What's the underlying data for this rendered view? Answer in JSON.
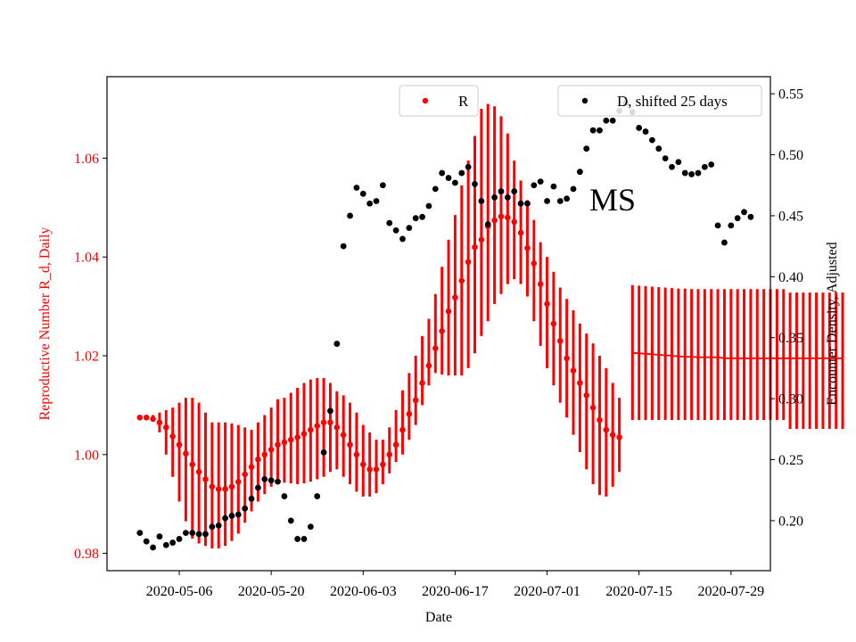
{
  "chart_data": {
    "type": "scatter",
    "xlabel": "Date",
    "ylabel_left": "Reproductive Number R_d, Daily",
    "ylabel_right": "Encounter Density, Adjusted",
    "annotation": "MS",
    "left_axis_color": "#ff0000",
    "right_axis_color": "#000000",
    "x_range": [
      "2020-04-25",
      "2020-08-04"
    ],
    "ylim_left": [
      0.9765,
      1.0765
    ],
    "ylim_right": [
      0.159,
      0.564
    ],
    "x_ticks": [
      "2020-05-06",
      "2020-05-20",
      "2020-06-03",
      "2020-06-17",
      "2020-07-01",
      "2020-07-15",
      "2020-07-29"
    ],
    "y_ticks_left": [
      0.98,
      1.0,
      1.02,
      1.04,
      1.06
    ],
    "y_tick_labels_left": [
      "0.98",
      "1.00",
      "1.02",
      "1.04",
      "1.06"
    ],
    "y_ticks_right": [
      0.2,
      0.25,
      0.3,
      0.35,
      0.4,
      0.45,
      0.5,
      0.55
    ],
    "y_tick_labels_right": [
      "0.20",
      "0.25",
      "0.30",
      "0.35",
      "0.40",
      "0.45",
      "0.50",
      "0.55"
    ],
    "legend": [
      {
        "label": "R",
        "color": "#ff0000",
        "placement": "top-center"
      },
      {
        "label": "D, shifted 25 days",
        "color": "#000000",
        "placement": "top-right"
      }
    ],
    "series": [
      {
        "name": "R",
        "axis": "left",
        "color": "#ff0000",
        "start_date": "2020-04-30",
        "values": [
          1.0075,
          1.0075,
          1.0072,
          1.0065,
          1.0055,
          1.0037,
          1.002,
          1.0002,
          0.998,
          0.9965,
          0.995,
          0.9935,
          0.993,
          0.993,
          0.9935,
          0.9945,
          0.996,
          0.9975,
          0.999,
          1.0,
          1.001,
          1.002,
          1.0025,
          1.003,
          1.0035,
          1.0042,
          1.005,
          1.0058,
          1.0065,
          1.0065,
          1.0055,
          1.004,
          1.002,
          1.0,
          0.998,
          0.997,
          0.997,
          0.998,
          1.0,
          1.002,
          1.005,
          1.0082,
          1.011,
          1.0145,
          1.018,
          1.0215,
          1.025,
          1.029,
          1.0318,
          1.0352,
          1.039,
          1.042,
          1.0435,
          1.0462,
          1.0474,
          1.0482,
          1.048,
          1.0471,
          1.0449,
          1.0418,
          1.0387,
          1.0345,
          1.0305,
          1.0265,
          1.023,
          1.0195,
          1.017,
          1.0145,
          1.012,
          1.0095,
          1.007,
          1.005,
          1.004,
          1.0035
        ],
        "err_low": [
          1.0075,
          1.0072,
          1.007,
          1.0045,
          1.0,
          0.9955,
          0.9905,
          0.9865,
          0.983,
          0.982,
          0.9815,
          0.981,
          0.981,
          0.9815,
          0.9825,
          0.984,
          0.9862,
          0.9885,
          0.9905,
          0.992,
          0.9935,
          0.9942,
          0.9943,
          0.9942,
          0.994,
          0.9942,
          0.9945,
          0.995,
          0.9955,
          0.9965,
          0.997,
          0.9955,
          0.994,
          0.9925,
          0.9915,
          0.9915,
          0.9922,
          0.994,
          0.9962,
          0.9985,
          1.0,
          1.003,
          1.006,
          1.01,
          1.014,
          1.0165,
          1.0162,
          1.016,
          1.016,
          1.016,
          1.0175,
          1.0205,
          1.024,
          1.027,
          1.0305,
          1.0325,
          1.0345,
          1.0355,
          1.0345,
          1.032,
          1.027,
          1.022,
          1.0175,
          1.014,
          1.0105,
          1.0075,
          1.004,
          1.0005,
          0.997,
          0.994,
          0.9918,
          0.9915,
          0.9935,
          0.9965
        ],
        "err_high": [
          1.0075,
          1.0078,
          1.008,
          1.0085,
          1.009,
          1.0095,
          1.0105,
          1.0115,
          1.0115,
          1.0105,
          1.0085,
          1.0065,
          1.0065,
          1.0065,
          1.0063,
          1.006,
          1.0055,
          1.005,
          1.0065,
          1.008,
          1.0095,
          1.0112,
          1.0115,
          1.0125,
          1.0135,
          1.0145,
          1.0152,
          1.0155,
          1.0155,
          1.0145,
          1.0128,
          1.012,
          1.0105,
          1.0085,
          1.006,
          1.0045,
          1.003,
          1.003,
          1.0055,
          1.009,
          1.013,
          1.0165,
          1.02,
          1.024,
          1.0275,
          1.0325,
          1.038,
          1.0435,
          1.0485,
          1.0545,
          1.0595,
          1.0645,
          1.07,
          1.071,
          1.0705,
          1.0685,
          1.065,
          1.0595,
          1.0555,
          1.0515,
          1.0475,
          1.043,
          1.04,
          1.037,
          1.0338,
          1.0315,
          1.0292,
          1.0265,
          1.0245,
          1.0225,
          1.02,
          1.0175,
          1.0145,
          1.0115
        ],
        "flat_segment": {
          "start_date": "2020-07-14",
          "values": [
            1.0206,
            1.0205,
            1.0204,
            1.0203,
            1.0202,
            1.0201,
            1.02,
            1.0199,
            1.0198,
            1.0198,
            1.0197,
            1.0197,
            1.0197,
            1.0197,
            1.0195,
            1.0195,
            1.0195,
            1.0195,
            1.0195,
            1.0195,
            1.0195,
            1.0195,
            1.0195,
            1.0195,
            1.0195,
            1.0195,
            1.0195,
            1.0195,
            1.0195,
            1.0195,
            1.0195,
            1.0195,
            1.0195
          ],
          "err_low": [
            1.007,
            1.007,
            1.007,
            1.007,
            1.007,
            1.007,
            1.007,
            1.007,
            1.007,
            1.007,
            1.007,
            1.007,
            1.007,
            1.007,
            1.007,
            1.007,
            1.007,
            1.007,
            1.007,
            1.007,
            1.007,
            1.007,
            1.007,
            1.007,
            1.0052,
            1.0052,
            1.0052,
            1.0052,
            1.0052,
            1.0052,
            1.0052,
            1.0052,
            1.0052
          ],
          "err_high": [
            1.0343,
            1.0342,
            1.0341,
            1.034,
            1.0339,
            1.0338,
            1.0337,
            1.0336,
            1.0336,
            1.0335,
            1.0335,
            1.0335,
            1.0335,
            1.0335,
            1.0335,
            1.0335,
            1.0335,
            1.0335,
            1.0335,
            1.0335,
            1.0335,
            1.0335,
            1.0335,
            1.0335,
            1.0328,
            1.0328,
            1.0328,
            1.0328,
            1.0328,
            1.0328,
            1.0328,
            1.0328,
            1.0328
          ]
        }
      },
      {
        "name": "D, shifted 25 days",
        "axis": "right",
        "color": "#000000",
        "points": [
          [
            "2020-04-30",
            0.19
          ],
          [
            "2020-05-01",
            0.183
          ],
          [
            "2020-05-02",
            0.178
          ],
          [
            "2020-05-03",
            0.187
          ],
          [
            "2020-05-04",
            0.18
          ],
          [
            "2020-05-05",
            0.182
          ],
          [
            "2020-05-06",
            0.185
          ],
          [
            "2020-05-07",
            0.19
          ],
          [
            "2020-05-08",
            0.19
          ],
          [
            "2020-05-09",
            0.189
          ],
          [
            "2020-05-10",
            0.189
          ],
          [
            "2020-05-11",
            0.195
          ],
          [
            "2020-05-12",
            0.196
          ],
          [
            "2020-05-13",
            0.202
          ],
          [
            "2020-05-14",
            0.204
          ],
          [
            "2020-05-15",
            0.205
          ],
          [
            "2020-05-16",
            0.21
          ],
          [
            "2020-05-17",
            0.218
          ],
          [
            "2020-05-18",
            0.227
          ],
          [
            "2020-05-19",
            0.234
          ],
          [
            "2020-05-20",
            0.233
          ],
          [
            "2020-05-21",
            0.232
          ],
          [
            "2020-05-22",
            0.22
          ],
          [
            "2020-05-23",
            0.2
          ],
          [
            "2020-05-24",
            0.185
          ],
          [
            "2020-05-25",
            0.185
          ],
          [
            "2020-05-26",
            0.195
          ],
          [
            "2020-05-27",
            0.22
          ],
          [
            "2020-05-28",
            0.256
          ],
          [
            "2020-05-29",
            0.29
          ],
          [
            "2020-05-30",
            0.345
          ],
          [
            "2020-05-31",
            0.425
          ],
          [
            "2020-06-01",
            0.45
          ],
          [
            "2020-06-02",
            0.473
          ],
          [
            "2020-06-03",
            0.468
          ],
          [
            "2020-06-04",
            0.46
          ],
          [
            "2020-06-05",
            0.462
          ],
          [
            "2020-06-06",
            0.475
          ],
          [
            "2020-06-07",
            0.444
          ],
          [
            "2020-06-08",
            0.438
          ],
          [
            "2020-06-09",
            0.431
          ],
          [
            "2020-06-10",
            0.44
          ],
          [
            "2020-06-11",
            0.448
          ],
          [
            "2020-06-12",
            0.449
          ],
          [
            "2020-06-13",
            0.458
          ],
          [
            "2020-06-14",
            0.472
          ],
          [
            "2020-06-15",
            0.485
          ],
          [
            "2020-06-16",
            0.481
          ],
          [
            "2020-06-17",
            0.477
          ],
          [
            "2020-06-18",
            0.485
          ],
          [
            "2020-06-19",
            0.49
          ],
          [
            "2020-06-20",
            0.476
          ],
          [
            "2020-06-21",
            0.462
          ],
          [
            "2020-06-22",
            0.443
          ],
          [
            "2020-06-23",
            0.465
          ],
          [
            "2020-06-24",
            0.47
          ],
          [
            "2020-06-25",
            0.465
          ],
          [
            "2020-06-26",
            0.47
          ],
          [
            "2020-06-27",
            0.46
          ],
          [
            "2020-06-28",
            0.46
          ],
          [
            "2020-06-29",
            0.475
          ],
          [
            "2020-06-30",
            0.478
          ],
          [
            "2020-07-01",
            0.462
          ],
          [
            "2020-07-02",
            0.474
          ],
          [
            "2020-07-03",
            0.462
          ],
          [
            "2020-07-04",
            0.464
          ],
          [
            "2020-07-05",
            0.472
          ],
          [
            "2020-07-06",
            0.486
          ],
          [
            "2020-07-07",
            0.505
          ],
          [
            "2020-07-08",
            0.52
          ],
          [
            "2020-07-09",
            0.52
          ],
          [
            "2020-07-10",
            0.528
          ],
          [
            "2020-07-11",
            0.528
          ],
          [
            "2020-07-12",
            0.536
          ],
          [
            "2020-07-13",
            0.542
          ],
          [
            "2020-07-14",
            0.535
          ],
          [
            "2020-07-15",
            0.522
          ],
          [
            "2020-07-16",
            0.519
          ],
          [
            "2020-07-17",
            0.512
          ],
          [
            "2020-07-18",
            0.505
          ],
          [
            "2020-07-19",
            0.497
          ],
          [
            "2020-07-20",
            0.49
          ],
          [
            "2020-07-21",
            0.494
          ],
          [
            "2020-07-22",
            0.485
          ],
          [
            "2020-07-23",
            0.484
          ],
          [
            "2020-07-24",
            0.485
          ],
          [
            "2020-07-25",
            0.49
          ],
          [
            "2020-07-26",
            0.492
          ],
          [
            "2020-07-27",
            0.442
          ],
          [
            "2020-07-28",
            0.428
          ],
          [
            "2020-07-29",
            0.442
          ],
          [
            "2020-07-30",
            0.448
          ],
          [
            "2020-07-31",
            0.453
          ],
          [
            "2020-08-01",
            0.449
          ]
        ]
      }
    ]
  }
}
